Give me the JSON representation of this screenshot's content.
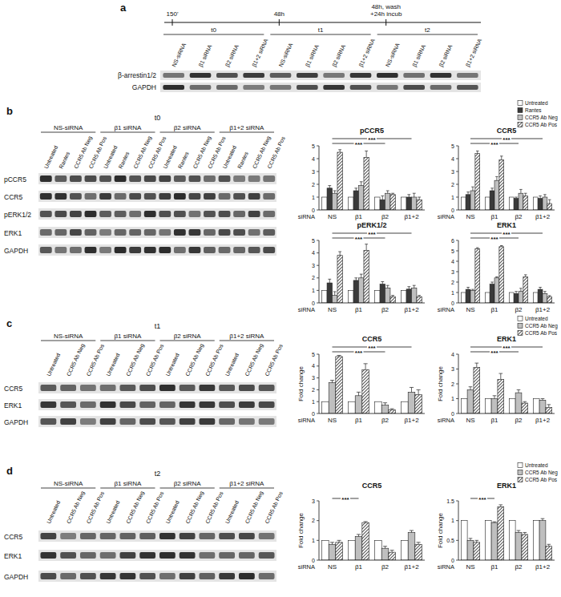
{
  "chart_data": [
    {
      "type": "bar",
      "title": "pCCR5",
      "x_label": "siRNA",
      "categories": [
        "NS",
        "β1",
        "β2",
        "β1+2"
      ],
      "series": [
        {
          "name": "Untreated",
          "color": "#ffffff",
          "values": [
            1,
            1,
            1,
            1
          ],
          "errors": [
            0,
            0,
            0,
            0
          ]
        },
        {
          "name": "Rantes",
          "color": "#3a3a3a",
          "values": [
            1.7,
            1.5,
            0.8,
            1.0
          ],
          "errors": [
            0.2,
            0.2,
            0.3,
            0.2
          ]
        },
        {
          "name": "CCR5 Ab Neg",
          "color": "#bfbfbf",
          "values": [
            1.3,
            1.9,
            1.3,
            1.0
          ],
          "errors": [
            0.2,
            0.3,
            0.2,
            0.3
          ]
        },
        {
          "name": "CCR5 Ab Pos",
          "color": "#555555",
          "values": [
            4.5,
            4.1,
            1.2,
            0.8
          ],
          "errors": [
            0.2,
            0.5,
            0.1,
            0.2
          ]
        }
      ],
      "ylim": [
        0,
        5
      ],
      "yticks": [
        0,
        1,
        2,
        3,
        4,
        5
      ],
      "annotations": [
        {
          "from": "NS",
          "to": "β2",
          "text": "***"
        },
        {
          "from": "NS",
          "to": "β1+2",
          "text": "***"
        }
      ]
    },
    {
      "type": "bar",
      "title": "CCR5",
      "x_label": "siRNA",
      "categories": [
        "NS",
        "β1",
        "β2",
        "β1+2"
      ],
      "legend": "upper right",
      "series": [
        {
          "name": "Untreated",
          "color": "#ffffff",
          "values": [
            1,
            1,
            1,
            1
          ],
          "errors": [
            0,
            0,
            0,
            0
          ]
        },
        {
          "name": "Rantes",
          "color": "#3a3a3a",
          "values": [
            1.2,
            1.5,
            0.9,
            0.9
          ],
          "errors": [
            0.2,
            0.2,
            0.1,
            0.2
          ]
        },
        {
          "name": "CCR5 Ab Neg",
          "color": "#bfbfbf",
          "values": [
            1.5,
            2.3,
            1.3,
            1.0
          ],
          "errors": [
            0.3,
            0.3,
            0.3,
            0.2
          ]
        },
        {
          "name": "CCR5 Ab Pos",
          "color": "#555555",
          "values": [
            4.4,
            3.9,
            1.1,
            0.5
          ],
          "errors": [
            0.2,
            0.3,
            0.2,
            0.3
          ]
        }
      ],
      "ylim": [
        0,
        5
      ],
      "yticks": [
        0,
        1,
        2,
        3,
        4,
        5
      ],
      "annotations": [
        {
          "from": "NS",
          "to": "β2",
          "text": "***"
        },
        {
          "from": "NS",
          "to": "β1+2",
          "text": "***"
        }
      ]
    },
    {
      "type": "bar",
      "title": "pERK1/2",
      "x_label": "siRNA",
      "categories": [
        "NS",
        "β1",
        "β2",
        "β1+2"
      ],
      "series": [
        {
          "name": "Untreated",
          "color": "#ffffff",
          "values": [
            1,
            1,
            1,
            1
          ],
          "errors": [
            0,
            0,
            0,
            0
          ]
        },
        {
          "name": "Rantes",
          "color": "#3a3a3a",
          "values": [
            1.6,
            1.8,
            1.5,
            1.1
          ],
          "errors": [
            0.3,
            0.2,
            0.2,
            0.2
          ]
        },
        {
          "name": "CCR5 Ab Neg",
          "color": "#bfbfbf",
          "values": [
            0.6,
            2.0,
            1.2,
            1.2
          ],
          "errors": [
            0.3,
            0.3,
            0.2,
            0.2
          ]
        },
        {
          "name": "CCR5 Ab Pos",
          "color": "#555555",
          "values": [
            3.8,
            4.2,
            0.5,
            0.5
          ],
          "errors": [
            0.3,
            0.5,
            0.1,
            0.1
          ]
        }
      ],
      "ylim": [
        0,
        5
      ],
      "yticks": [
        0,
        1,
        2,
        3,
        4,
        5
      ],
      "annotations": [
        {
          "from": "NS",
          "to": "β2",
          "text": "***"
        },
        {
          "from": "NS",
          "to": "β1+2",
          "text": "***"
        }
      ]
    },
    {
      "type": "bar",
      "title": "ERK1",
      "x_label": "siRNA",
      "categories": [
        "NS",
        "β1",
        "β2",
        "β1+2"
      ],
      "series": [
        {
          "name": "Untreated",
          "color": "#ffffff",
          "values": [
            1,
            1,
            1,
            1
          ],
          "errors": [
            0,
            0,
            0,
            0
          ]
        },
        {
          "name": "Rantes",
          "color": "#3a3a3a",
          "values": [
            1.3,
            1.8,
            0.9,
            1.3
          ],
          "errors": [
            0.2,
            0.2,
            0.2,
            0.2
          ]
        },
        {
          "name": "CCR5 Ab Neg",
          "color": "#bfbfbf",
          "values": [
            1.2,
            2.4,
            1.1,
            0.9
          ],
          "errors": [
            0.1,
            0.1,
            0.3,
            0.2
          ]
        },
        {
          "name": "CCR5 Ab Pos",
          "color": "#555555",
          "values": [
            5.2,
            5.4,
            2.5,
            0.6
          ],
          "errors": [
            0.1,
            0.1,
            0.2,
            0.1
          ]
        }
      ],
      "ylim": [
        0,
        6
      ],
      "yticks": [
        0,
        1,
        2,
        3,
        4,
        5,
        6
      ],
      "annotations": [
        {
          "from": "NS",
          "to": "β2",
          "text": "***"
        },
        {
          "from": "NS",
          "to": "β1+2",
          "text": "***"
        }
      ]
    },
    {
      "type": "bar",
      "title": "CCR5",
      "x_label": "siRNA",
      "y_label": "Fold change",
      "categories": [
        "NS",
        "β1",
        "β2",
        "β1+2"
      ],
      "series": [
        {
          "name": "Untreated",
          "color": "#ffffff",
          "values": [
            1,
            1,
            1,
            1
          ],
          "errors": [
            0,
            0,
            0,
            0
          ]
        },
        {
          "name": "CCR5 Ab Neg",
          "color": "#bfbfbf",
          "values": [
            2.6,
            1.5,
            0.7,
            1.8
          ],
          "errors": [
            0.2,
            0.3,
            0.2,
            0.4
          ]
        },
        {
          "name": "CCR5 Ab Pos",
          "color": "#555555",
          "values": [
            4.8,
            3.7,
            0.3,
            1.6
          ],
          "errors": [
            0.1,
            0.5,
            0.1,
            0.4
          ]
        }
      ],
      "ylim": [
        0,
        5
      ],
      "yticks": [
        0,
        1,
        2,
        3,
        4,
        5
      ],
      "annotations": [
        {
          "from": "NS",
          "to": "β2",
          "text": "***"
        },
        {
          "from": "NS",
          "to": "β1+2",
          "text": "***"
        }
      ]
    },
    {
      "type": "bar",
      "title": "ERK1",
      "x_label": "siRNA",
      "y_label": "Fold change",
      "categories": [
        "NS",
        "β1",
        "β2",
        "β1+2"
      ],
      "legend": "upper right",
      "series": [
        {
          "name": "Untreated",
          "color": "#ffffff",
          "values": [
            1,
            1,
            1,
            1
          ],
          "errors": [
            0,
            0,
            0,
            0
          ]
        },
        {
          "name": "CCR5 Ab Neg",
          "color": "#bfbfbf",
          "values": [
            1.6,
            1.0,
            1.4,
            0.9
          ],
          "errors": [
            0.2,
            0.2,
            0.2,
            0.1
          ]
        },
        {
          "name": "CCR5 Ab Pos",
          "color": "#555555",
          "values": [
            3.1,
            2.3,
            0.7,
            0.4
          ],
          "errors": [
            0.3,
            0.4,
            0.1,
            0.2
          ]
        }
      ],
      "ylim": [
        0,
        4
      ],
      "yticks": [
        0,
        1,
        2,
        3,
        4
      ],
      "annotations": [
        {
          "from": "NS",
          "to": "β2",
          "text": "***"
        },
        {
          "from": "NS",
          "to": "β1+2",
          "text": "***"
        }
      ]
    },
    {
      "type": "bar",
      "title": "CCR5",
      "x_label": "siRNA",
      "y_label": "Fold change",
      "categories": [
        "NS",
        "β1",
        "β2",
        "β1+2"
      ],
      "series": [
        {
          "name": "Untreated",
          "color": "#ffffff",
          "values": [
            1,
            1,
            1,
            1
          ],
          "errors": [
            0,
            0,
            0,
            0
          ]
        },
        {
          "name": "CCR5 Ab Neg",
          "color": "#bfbfbf",
          "values": [
            0.8,
            1.2,
            0.6,
            1.4
          ],
          "errors": [
            0.1,
            0.1,
            0.1,
            0.1
          ]
        },
        {
          "name": "CCR5 Ab Pos",
          "color": "#555555",
          "values": [
            0.9,
            1.9,
            0.4,
            0.8
          ],
          "errors": [
            0.1,
            0.05,
            0.1,
            0.1
          ]
        }
      ],
      "ylim": [
        0,
        3
      ],
      "yticks": [
        0,
        1,
        2,
        3
      ],
      "annotations": [
        {
          "from": "NS",
          "to": "β1",
          "text": "***"
        }
      ]
    },
    {
      "type": "bar",
      "title": "ERK1",
      "x_label": "siRNA",
      "y_label": "Fold change",
      "categories": [
        "NS",
        "β1",
        "β2",
        "β1+2"
      ],
      "legend": "upper right",
      "series": [
        {
          "name": "Untreated",
          "color": "#ffffff",
          "values": [
            1,
            1,
            1,
            1
          ],
          "errors": [
            0,
            0,
            0,
            0
          ]
        },
        {
          "name": "CCR5 Ab Neg",
          "color": "#bfbfbf",
          "values": [
            0.5,
            0.95,
            0.7,
            1.0
          ],
          "errors": [
            0.05,
            0.02,
            0.05,
            0.05
          ]
        },
        {
          "name": "CCR5 Ab Pos",
          "color": "#555555",
          "values": [
            0.45,
            1.35,
            0.65,
            0.35
          ],
          "errors": [
            0.05,
            0.05,
            0.05,
            0.05
          ]
        }
      ],
      "ylim": [
        0,
        1.5
      ],
      "yticks": [
        0,
        0.5,
        1,
        1.5
      ],
      "annotations": [
        {
          "from": "NS",
          "to": "β1",
          "text": "***"
        }
      ]
    }
  ],
  "panels": {
    "a": {
      "label": "a",
      "timeline": [
        "150'",
        "48h",
        "48h, wash\n+24h incub"
      ],
      "times": [
        "t0",
        "t1",
        "t2"
      ],
      "lanes": [
        "NS-siRNA",
        "β1 siRNA",
        "β2 siRNA",
        "β1+2 siRNA"
      ],
      "rows": [
        "β-arrestin1/2",
        "GAPDH"
      ]
    },
    "b": {
      "label": "b",
      "time": "t0",
      "groups": [
        "NS-siRNA",
        "β1 siRNA",
        "β2 siRNA",
        "β1+2 siRNA"
      ],
      "lanes": [
        "Untreated",
        "Rantes",
        "CCR5 Ab Neg",
        "CCR5 Ab Pos"
      ],
      "rows": [
        "pCCR5",
        "CCR5",
        "pERK1/2",
        "ERK1",
        "GAPDH"
      ]
    },
    "c": {
      "label": "c",
      "time": "t1",
      "groups": [
        "NS-siRNA",
        "β1 siRNA",
        "β2 siRNA",
        "β1+2 siRNA"
      ],
      "lanes": [
        "Untreated",
        "CCR5 Ab Neg",
        "CCR5 Ab Pos"
      ],
      "rows": [
        "CCR5",
        "ERK1",
        "GAPDH"
      ]
    },
    "d": {
      "label": "d",
      "time": "t2",
      "groups": [
        "NS-siRNA",
        "β1 siRNA",
        "β2 siRNA",
        "β1+2 siRNA"
      ],
      "lanes": [
        "Untreated",
        "CCR5 Ab Neg",
        "CCR5 Ab Pos"
      ],
      "rows": [
        "CCR5",
        "ERK1",
        "GAPDH"
      ]
    }
  }
}
